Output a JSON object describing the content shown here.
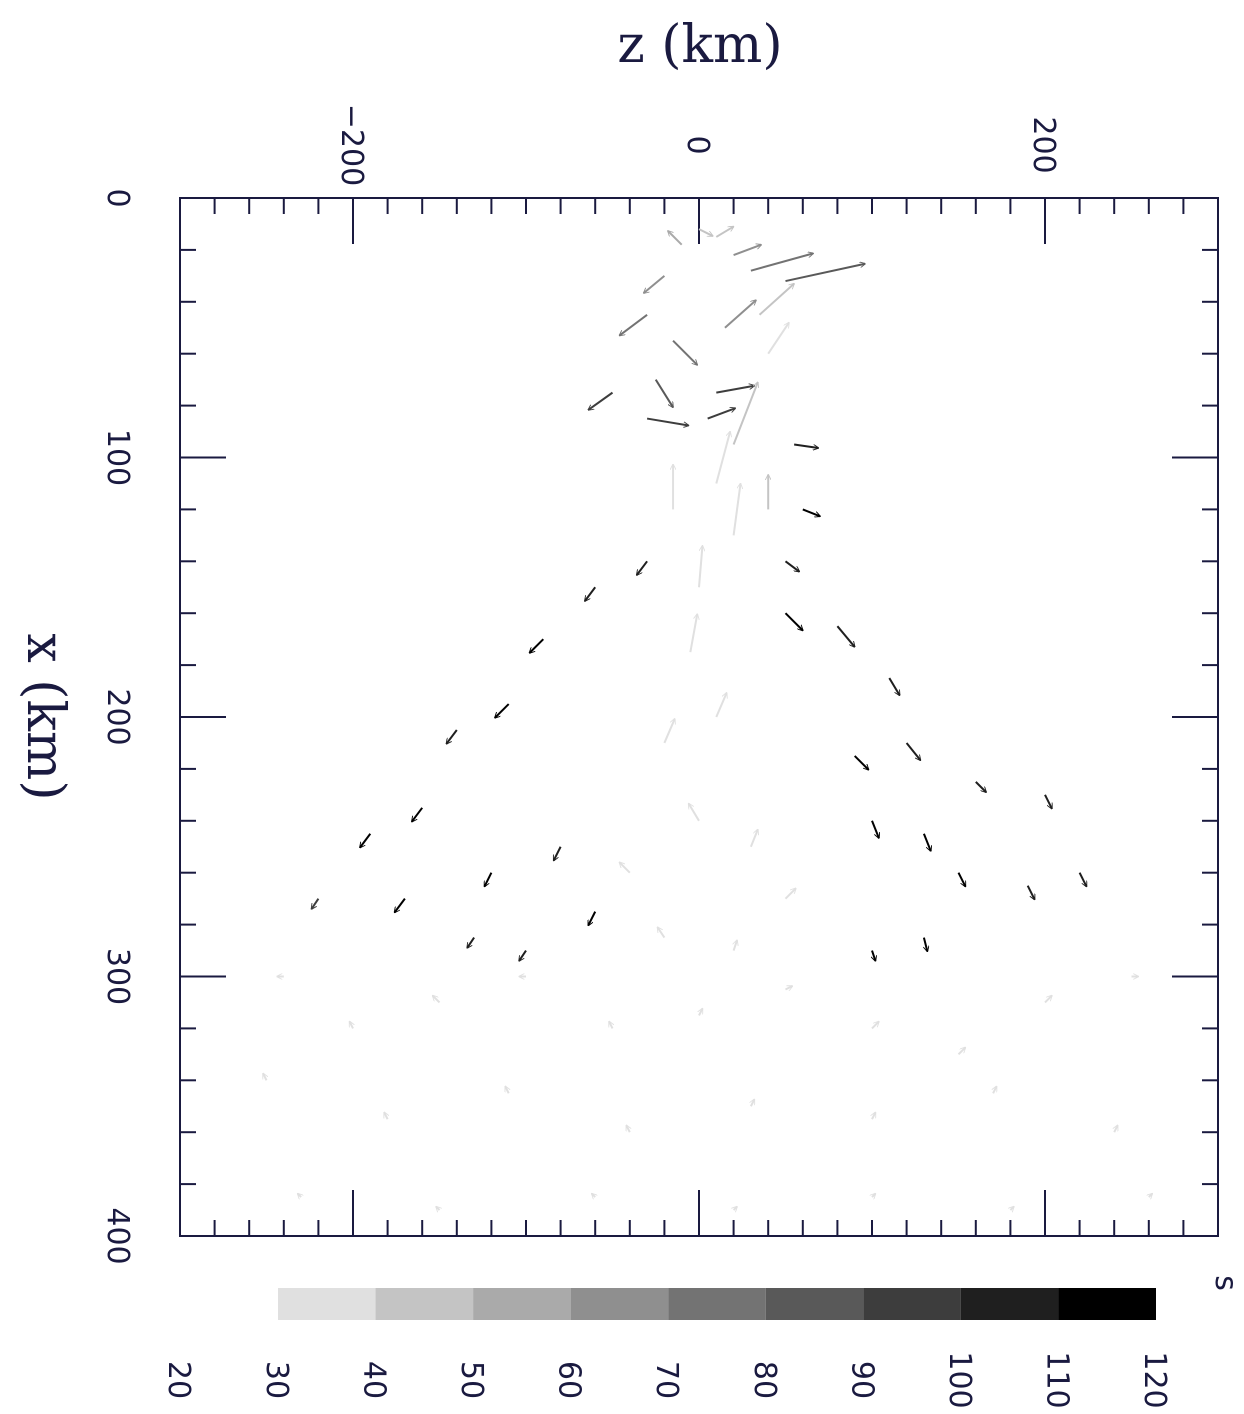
{
  "chart_data": {
    "type": "quiver",
    "xlabel": "z  (km)",
    "ylabel": "x  (km)",
    "xlim": [
      -300,
      300
    ],
    "ylim": [
      0,
      400
    ],
    "x_ticks": [
      -200,
      0,
      200
    ],
    "y_ticks": [
      0,
      100,
      200,
      300,
      400
    ],
    "x_tick_labels": [
      "−200",
      "0",
      "200"
    ],
    "y_tick_labels": [
      "0",
      "100",
      "200",
      "300",
      "400"
    ],
    "colorbar": {
      "unit": "s",
      "range": [
        20,
        120
      ],
      "levels": [
        20,
        30,
        40,
        50,
        60,
        70,
        80,
        90,
        100,
        110,
        120
      ],
      "tick_labels": [
        "20",
        "30",
        "40",
        "50",
        "60",
        "70",
        "80",
        "90",
        "100",
        "110",
        "120"
      ],
      "bin_colors": [
        "#ffffff",
        "#e0e0e0",
        "#c4c4c4",
        "#aaaaaa",
        "#8f8f8f",
        "#737373",
        "#595959",
        "#3d3d3d",
        "#1f1f1f",
        "#000000"
      ]
    },
    "vectors": [
      {
        "z": 0,
        "x": 12,
        "dz": 8,
        "dx": 4,
        "t": 40
      },
      {
        "z": 10,
        "x": 15,
        "dz": 10,
        "dx": -6,
        "t": 45
      },
      {
        "z": -10,
        "x": 18,
        "dz": -8,
        "dx": -8,
        "t": 50
      },
      {
        "z": 20,
        "x": 22,
        "dz": 16,
        "dx": -6,
        "t": 60
      },
      {
        "z": 30,
        "x": 28,
        "dz": 36,
        "dx": -10,
        "t": 70
      },
      {
        "z": 50,
        "x": 32,
        "dz": 46,
        "dx": -10,
        "t": 80
      },
      {
        "z": -20,
        "x": 30,
        "dz": -12,
        "dx": 10,
        "t": 60
      },
      {
        "z": -30,
        "x": 45,
        "dz": -16,
        "dx": 12,
        "t": 70
      },
      {
        "z": -15,
        "x": 55,
        "dz": 14,
        "dx": 14,
        "t": 75
      },
      {
        "z": 15,
        "x": 50,
        "dz": 18,
        "dx": -16,
        "t": 60
      },
      {
        "z": 35,
        "x": 45,
        "dz": 20,
        "dx": -18,
        "t": 40
      },
      {
        "z": 40,
        "x": 60,
        "dz": 12,
        "dx": -18,
        "t": 35
      },
      {
        "z": -25,
        "x": 70,
        "dz": 10,
        "dx": 16,
        "t": 80
      },
      {
        "z": 10,
        "x": 75,
        "dz": 22,
        "dx": -4,
        "t": 90
      },
      {
        "z": -50,
        "x": 75,
        "dz": -14,
        "dx": 10,
        "t": 90
      },
      {
        "z": -30,
        "x": 85,
        "dz": 24,
        "dx": 4,
        "t": 95
      },
      {
        "z": 5,
        "x": 85,
        "dz": 16,
        "dx": -6,
        "t": 90
      },
      {
        "z": 20,
        "x": 95,
        "dz": 14,
        "dx": -36,
        "t": 40
      },
      {
        "z": 10,
        "x": 110,
        "dz": 8,
        "dx": -30,
        "t": 35
      },
      {
        "z": -15,
        "x": 120,
        "dz": 0,
        "dx": -26,
        "t": 35
      },
      {
        "z": 20,
        "x": 130,
        "dz": 4,
        "dx": -30,
        "t": 35
      },
      {
        "z": 0,
        "x": 150,
        "dz": 2,
        "dx": -24,
        "t": 35
      },
      {
        "z": -5,
        "x": 175,
        "dz": 4,
        "dx": -22,
        "t": 35
      },
      {
        "z": 10,
        "x": 200,
        "dz": 6,
        "dx": -14,
        "t": 35
      },
      {
        "z": -20,
        "x": 210,
        "dz": 6,
        "dx": -14,
        "t": 35
      },
      {
        "z": 40,
        "x": 120,
        "dz": 0,
        "dx": -20,
        "t": 40
      },
      {
        "z": 55,
        "x": 95,
        "dz": 14,
        "dx": 2,
        "t": 100
      },
      {
        "z": 60,
        "x": 120,
        "dz": 10,
        "dx": 4,
        "t": 110
      },
      {
        "z": 50,
        "x": 140,
        "dz": 8,
        "dx": 6,
        "t": 100
      },
      {
        "z": 50,
        "x": 160,
        "dz": 10,
        "dx": 10,
        "t": 110
      },
      {
        "z": 80,
        "x": 165,
        "dz": 10,
        "dx": 12,
        "t": 100
      },
      {
        "z": 110,
        "x": 185,
        "dz": 6,
        "dx": 10,
        "t": 100
      },
      {
        "z": 120,
        "x": 210,
        "dz": 8,
        "dx": 10,
        "t": 105
      },
      {
        "z": 90,
        "x": 215,
        "dz": 8,
        "dx": 8,
        "t": 110
      },
      {
        "z": 100,
        "x": 240,
        "dz": 4,
        "dx": 10,
        "t": 110
      },
      {
        "z": 130,
        "x": 245,
        "dz": 4,
        "dx": 10,
        "t": 110
      },
      {
        "z": 160,
        "x": 225,
        "dz": 6,
        "dx": 6,
        "t": 100
      },
      {
        "z": 200,
        "x": 230,
        "dz": 4,
        "dx": 8,
        "t": 100
      },
      {
        "z": 220,
        "x": 260,
        "dz": 4,
        "dx": 8,
        "t": 100
      },
      {
        "z": 190,
        "x": 265,
        "dz": 4,
        "dx": 8,
        "t": 100
      },
      {
        "z": 150,
        "x": 260,
        "dz": 4,
        "dx": 8,
        "t": 110
      },
      {
        "z": 130,
        "x": 285,
        "dz": 2,
        "dx": 8,
        "t": 110
      },
      {
        "z": 100,
        "x": 290,
        "dz": 2,
        "dx": 6,
        "t": 110
      },
      {
        "z": -30,
        "x": 140,
        "dz": -6,
        "dx": 8,
        "t": 100
      },
      {
        "z": -60,
        "x": 150,
        "dz": -6,
        "dx": 8,
        "t": 100
      },
      {
        "z": -90,
        "x": 170,
        "dz": -8,
        "dx": 8,
        "t": 110
      },
      {
        "z": -110,
        "x": 195,
        "dz": -8,
        "dx": 8,
        "t": 110
      },
      {
        "z": -140,
        "x": 205,
        "dz": -6,
        "dx": 8,
        "t": 100
      },
      {
        "z": -160,
        "x": 235,
        "dz": -6,
        "dx": 8,
        "t": 110
      },
      {
        "z": -190,
        "x": 245,
        "dz": -6,
        "dx": 8,
        "t": 110
      },
      {
        "z": -170,
        "x": 270,
        "dz": -6,
        "dx": 8,
        "t": 110
      },
      {
        "z": -120,
        "x": 260,
        "dz": -4,
        "dx": 8,
        "t": 110
      },
      {
        "z": -80,
        "x": 250,
        "dz": -4,
        "dx": 8,
        "t": 100
      },
      {
        "z": -60,
        "x": 275,
        "dz": -4,
        "dx": 8,
        "t": 110
      },
      {
        "z": -130,
        "x": 285,
        "dz": -4,
        "dx": 6,
        "t": 100
      },
      {
        "z": -100,
        "x": 290,
        "dz": -4,
        "dx": 6,
        "t": 100
      },
      {
        "z": -220,
        "x": 270,
        "dz": -4,
        "dx": 6,
        "t": 90
      },
      {
        "z": 0,
        "x": 240,
        "dz": -6,
        "dx": -10,
        "t": 30
      },
      {
        "z": 30,
        "x": 250,
        "dz": 4,
        "dx": -10,
        "t": 30
      },
      {
        "z": -40,
        "x": 260,
        "dz": -6,
        "dx": -6,
        "t": 30
      },
      {
        "z": 50,
        "x": 270,
        "dz": 6,
        "dx": -6,
        "t": 30
      },
      {
        "z": -20,
        "x": 285,
        "dz": -4,
        "dx": -6,
        "t": 30
      },
      {
        "z": 20,
        "x": 290,
        "dz": 2,
        "dx": -6,
        "t": 30
      },
      {
        "z": -240,
        "x": 300,
        "dz": -4,
        "dx": 0,
        "t": 30
      },
      {
        "z": -200,
        "x": 320,
        "dz": -2,
        "dx": -4,
        "t": 30
      },
      {
        "z": -150,
        "x": 310,
        "dz": -4,
        "dx": -4,
        "t": 30
      },
      {
        "z": -100,
        "x": 300,
        "dz": -4,
        "dx": 0,
        "t": 30
      },
      {
        "z": -50,
        "x": 320,
        "dz": -2,
        "dx": -4,
        "t": 30
      },
      {
        "z": 0,
        "x": 315,
        "dz": 2,
        "dx": -4,
        "t": 30
      },
      {
        "z": 50,
        "x": 305,
        "dz": 4,
        "dx": -2,
        "t": 30
      },
      {
        "z": 100,
        "x": 320,
        "dz": 4,
        "dx": -4,
        "t": 30
      },
      {
        "z": 150,
        "x": 330,
        "dz": 4,
        "dx": -4,
        "t": 30
      },
      {
        "z": 200,
        "x": 310,
        "dz": 4,
        "dx": -4,
        "t": 30
      },
      {
        "z": 250,
        "x": 300,
        "dz": 4,
        "dx": 0,
        "t": 30
      },
      {
        "z": -250,
        "x": 340,
        "dz": -2,
        "dx": -4,
        "t": 30
      },
      {
        "z": -180,
        "x": 355,
        "dz": -2,
        "dx": -4,
        "t": 30
      },
      {
        "z": -110,
        "x": 345,
        "dz": -2,
        "dx": -4,
        "t": 30
      },
      {
        "z": -40,
        "x": 360,
        "dz": -2,
        "dx": -4,
        "t": 30
      },
      {
        "z": 30,
        "x": 350,
        "dz": 2,
        "dx": -4,
        "t": 30
      },
      {
        "z": 100,
        "x": 355,
        "dz": 2,
        "dx": -4,
        "t": 30
      },
      {
        "z": 170,
        "x": 345,
        "dz": 2,
        "dx": -4,
        "t": 30
      },
      {
        "z": 240,
        "x": 360,
        "dz": 2,
        "dx": -4,
        "t": 30
      },
      {
        "z": -230,
        "x": 385,
        "dz": -2,
        "dx": -2,
        "t": 30
      },
      {
        "z": -150,
        "x": 390,
        "dz": -2,
        "dx": -2,
        "t": 30
      },
      {
        "z": -60,
        "x": 385,
        "dz": -2,
        "dx": -2,
        "t": 30
      },
      {
        "z": 20,
        "x": 390,
        "dz": 2,
        "dx": -2,
        "t": 30
      },
      {
        "z": 100,
        "x": 385,
        "dz": 2,
        "dx": -2,
        "t": 30
      },
      {
        "z": 180,
        "x": 390,
        "dz": 2,
        "dx": -2,
        "t": 30
      },
      {
        "z": 260,
        "x": 385,
        "dz": 2,
        "dx": -2,
        "t": 30
      }
    ]
  }
}
